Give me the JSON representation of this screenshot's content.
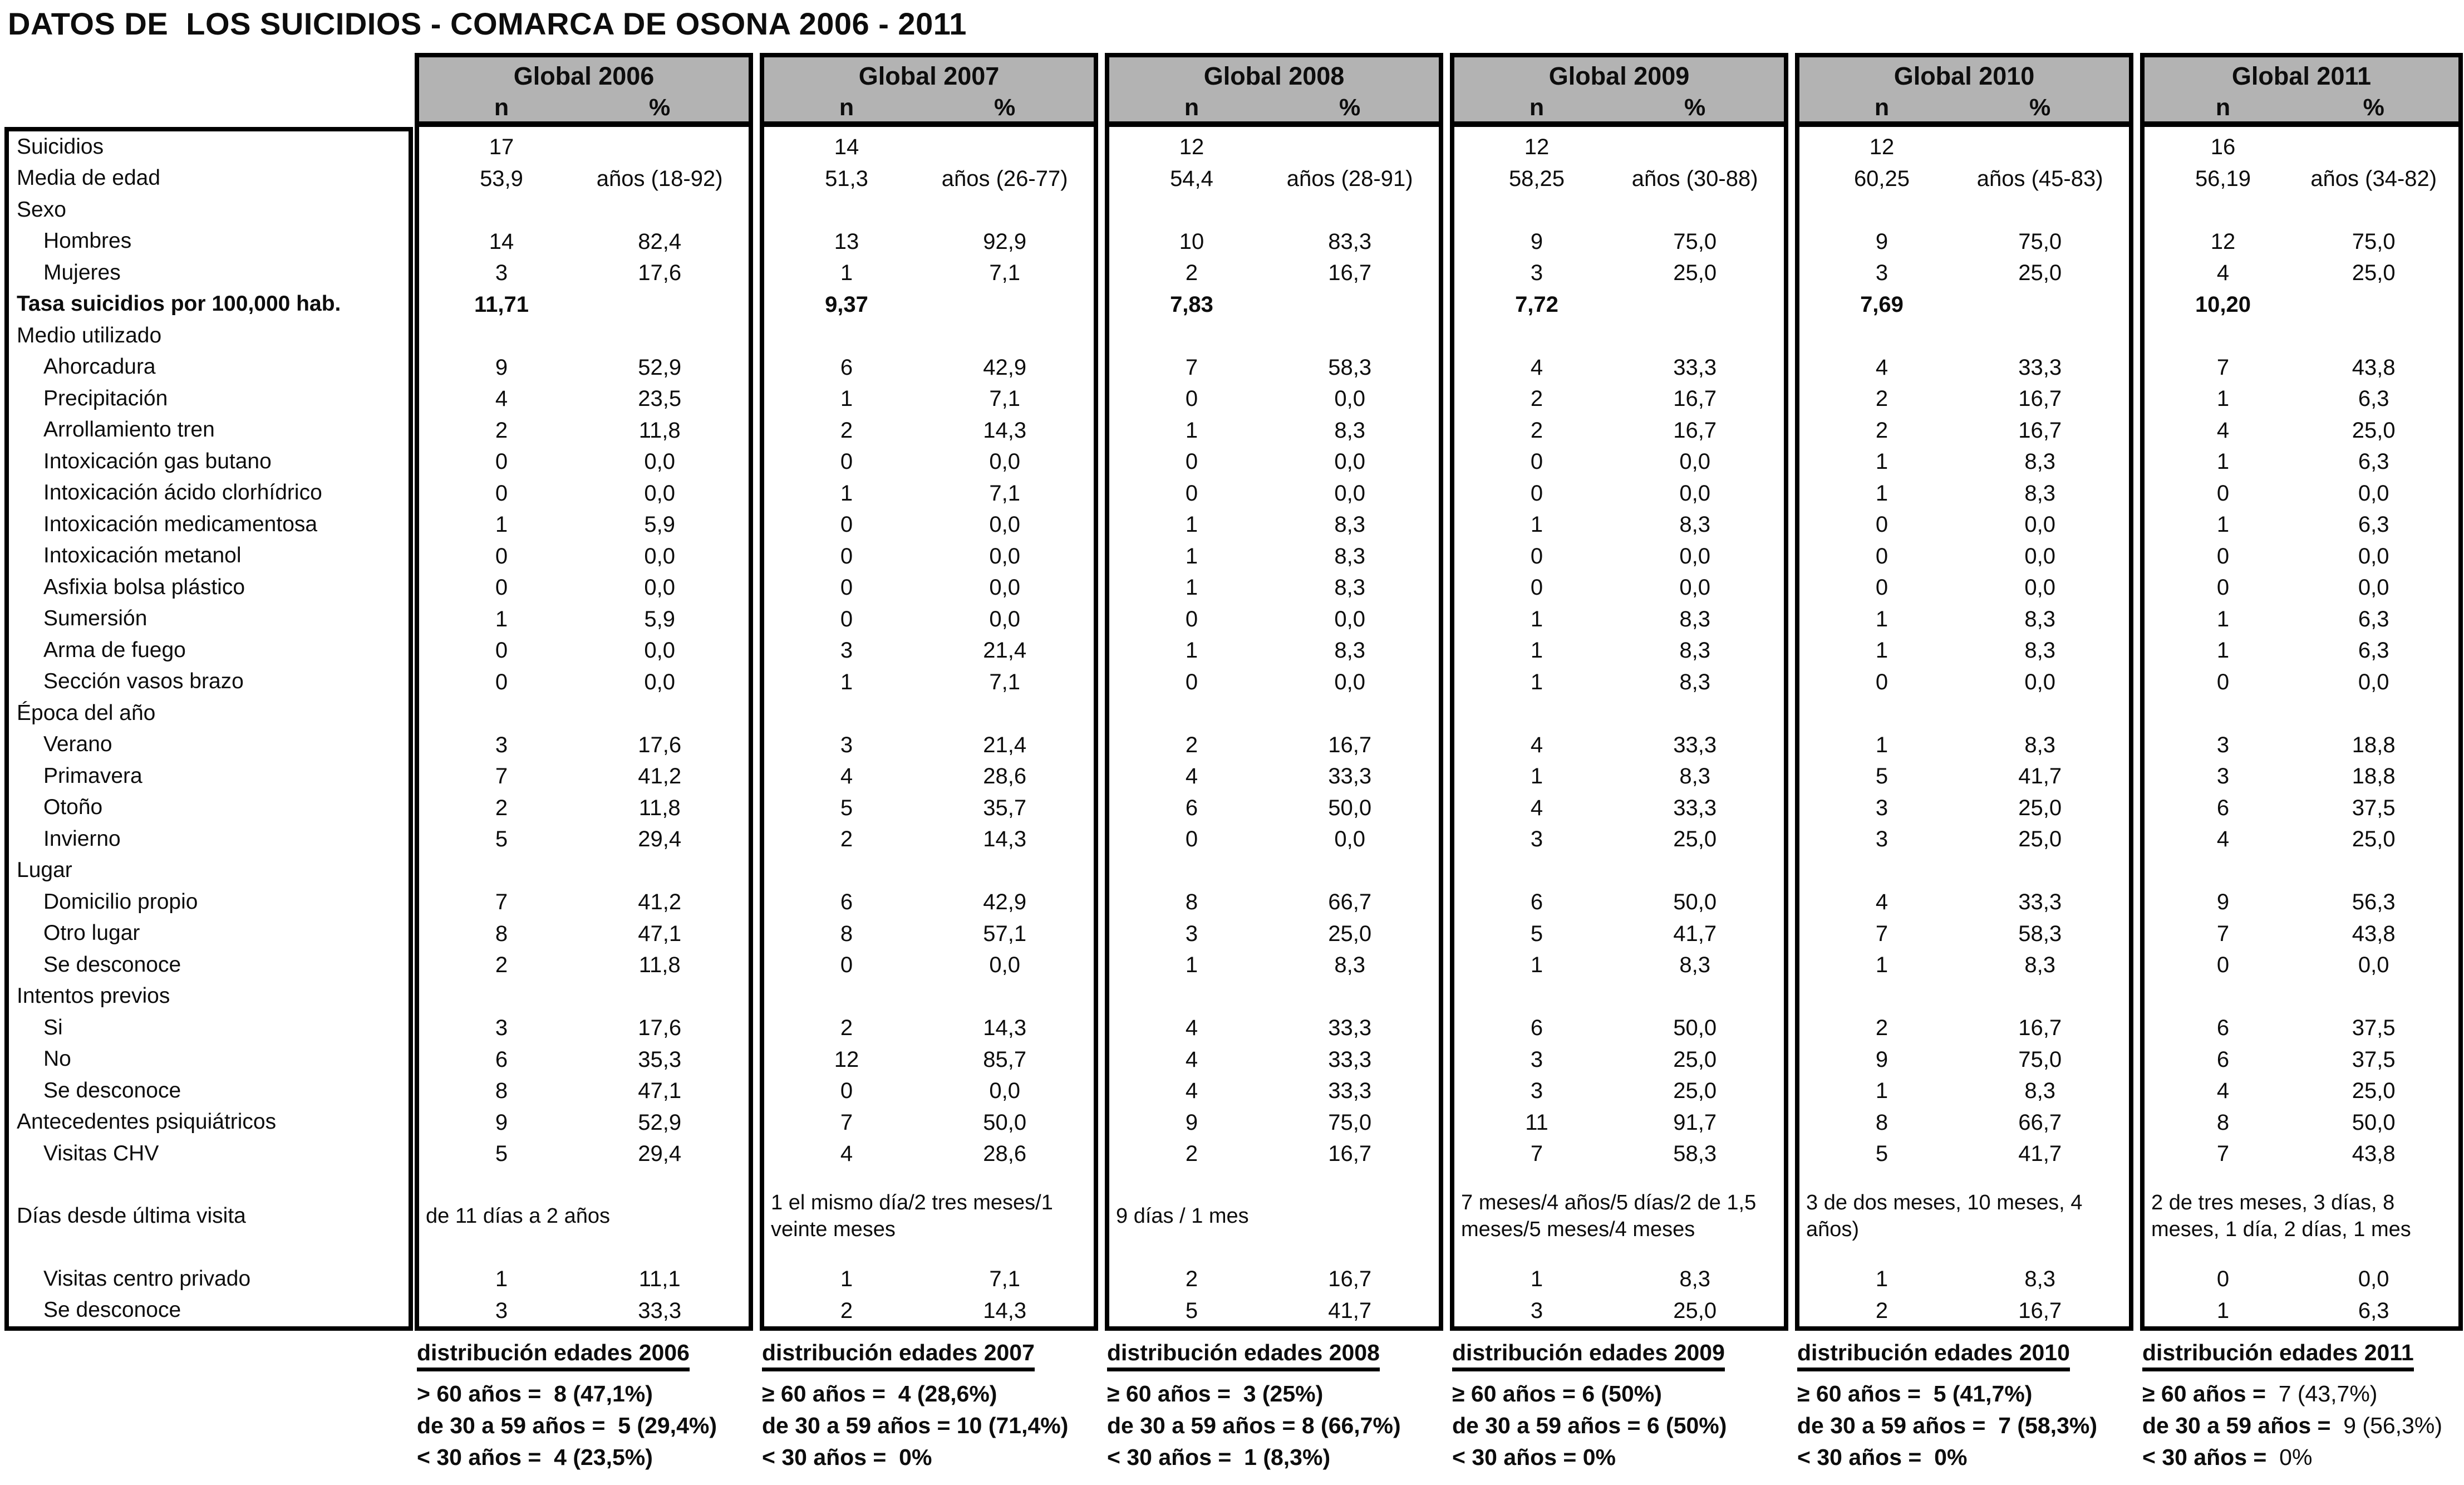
{
  "title": "DATOS DE  LOS SUICIDIOS - COMARCA DE OSONA 2006 - 2011",
  "table": {
    "years": [
      "Global 2006",
      "Global 2007",
      "Global 2008",
      "Global 2009",
      "Global 2010",
      "Global 2011"
    ],
    "col_n": "n",
    "col_pct": "%",
    "rows": [
      {
        "label": "Suicidios",
        "indent": false,
        "type": "data",
        "cells": [
          [
            "17",
            ""
          ],
          [
            "14",
            ""
          ],
          [
            "12",
            ""
          ],
          [
            "12",
            ""
          ],
          [
            "12",
            ""
          ],
          [
            "16",
            ""
          ]
        ]
      },
      {
        "label": "Media de edad",
        "indent": false,
        "type": "data",
        "cells": [
          [
            "53,9",
            "años (18-92)"
          ],
          [
            "51,3",
            "años (26-77)"
          ],
          [
            "54,4",
            "años (28-91)"
          ],
          [
            "58,25",
            "años (30-88)"
          ],
          [
            "60,25",
            "años (45-83)"
          ],
          [
            "56,19",
            "años (34-82)"
          ]
        ]
      },
      {
        "label": "Sexo",
        "indent": false,
        "type": "group"
      },
      {
        "label": "Hombres",
        "indent": true,
        "type": "data",
        "cells": [
          [
            "14",
            "82,4"
          ],
          [
            "13",
            "92,9"
          ],
          [
            "10",
            "83,3"
          ],
          [
            "9",
            "75,0"
          ],
          [
            "9",
            "75,0"
          ],
          [
            "12",
            "75,0"
          ]
        ]
      },
      {
        "label": "Mujeres",
        "indent": true,
        "type": "data",
        "cells": [
          [
            "3",
            "17,6"
          ],
          [
            "1",
            "7,1"
          ],
          [
            "2",
            "16,7"
          ],
          [
            "3",
            "25,0"
          ],
          [
            "3",
            "25,0"
          ],
          [
            "4",
            "25,0"
          ]
        ]
      },
      {
        "label": "Tasa suicidios por 100,000 hab.",
        "indent": false,
        "bold": true,
        "type": "rate",
        "cells": [
          [
            "11,71",
            ""
          ],
          [
            "9,37",
            ""
          ],
          [
            "7,83",
            ""
          ],
          [
            "7,72",
            ""
          ],
          [
            "7,69",
            ""
          ],
          [
            "10,20",
            ""
          ]
        ]
      },
      {
        "label": "Medio utilizado",
        "indent": false,
        "type": "group"
      },
      {
        "label": "Ahorcadura",
        "indent": true,
        "type": "data",
        "cells": [
          [
            "9",
            "52,9"
          ],
          [
            "6",
            "42,9"
          ],
          [
            "7",
            "58,3"
          ],
          [
            "4",
            "33,3"
          ],
          [
            "4",
            "33,3"
          ],
          [
            "7",
            "43,8"
          ]
        ]
      },
      {
        "label": "Precipitación",
        "indent": true,
        "type": "data",
        "cells": [
          [
            "4",
            "23,5"
          ],
          [
            "1",
            "7,1"
          ],
          [
            "0",
            "0,0"
          ],
          [
            "2",
            "16,7"
          ],
          [
            "2",
            "16,7"
          ],
          [
            "1",
            "6,3"
          ]
        ]
      },
      {
        "label": "Arrollamiento tren",
        "indent": true,
        "type": "data",
        "cells": [
          [
            "2",
            "11,8"
          ],
          [
            "2",
            "14,3"
          ],
          [
            "1",
            "8,3"
          ],
          [
            "2",
            "16,7"
          ],
          [
            "2",
            "16,7"
          ],
          [
            "4",
            "25,0"
          ]
        ]
      },
      {
        "label": "Intoxicación gas butano",
        "indent": true,
        "type": "data",
        "cells": [
          [
            "0",
            "0,0"
          ],
          [
            "0",
            "0,0"
          ],
          [
            "0",
            "0,0"
          ],
          [
            "0",
            "0,0"
          ],
          [
            "1",
            "8,3"
          ],
          [
            "1",
            "6,3"
          ]
        ]
      },
      {
        "label": "Intoxicación ácido clorhídrico",
        "indent": true,
        "type": "data",
        "cells": [
          [
            "0",
            "0,0"
          ],
          [
            "1",
            "7,1"
          ],
          [
            "0",
            "0,0"
          ],
          [
            "0",
            "0,0"
          ],
          [
            "1",
            "8,3"
          ],
          [
            "0",
            "0,0"
          ]
        ]
      },
      {
        "label": "Intoxicación medicamentosa",
        "indent": true,
        "type": "data",
        "cells": [
          [
            "1",
            "5,9"
          ],
          [
            "0",
            "0,0"
          ],
          [
            "1",
            "8,3"
          ],
          [
            "1",
            "8,3"
          ],
          [
            "0",
            "0,0"
          ],
          [
            "1",
            "6,3"
          ]
        ]
      },
      {
        "label": "Intoxicación metanol",
        "indent": true,
        "type": "data",
        "cells": [
          [
            "0",
            "0,0"
          ],
          [
            "0",
            "0,0"
          ],
          [
            "1",
            "8,3"
          ],
          [
            "0",
            "0,0"
          ],
          [
            "0",
            "0,0"
          ],
          [
            "0",
            "0,0"
          ]
        ]
      },
      {
        "label": "Asfixia bolsa plástico",
        "indent": true,
        "type": "data",
        "cells": [
          [
            "0",
            "0,0"
          ],
          [
            "0",
            "0,0"
          ],
          [
            "1",
            "8,3"
          ],
          [
            "0",
            "0,0"
          ],
          [
            "0",
            "0,0"
          ],
          [
            "0",
            "0,0"
          ]
        ]
      },
      {
        "label": "Sumersión",
        "indent": true,
        "type": "data",
        "cells": [
          [
            "1",
            "5,9"
          ],
          [
            "0",
            "0,0"
          ],
          [
            "0",
            "0,0"
          ],
          [
            "1",
            "8,3"
          ],
          [
            "1",
            "8,3"
          ],
          [
            "1",
            "6,3"
          ]
        ]
      },
      {
        "label": "Arma de fuego",
        "indent": true,
        "type": "data",
        "cells": [
          [
            "0",
            "0,0"
          ],
          [
            "3",
            "21,4"
          ],
          [
            "1",
            "8,3"
          ],
          [
            "1",
            "8,3"
          ],
          [
            "1",
            "8,3"
          ],
          [
            "1",
            "6,3"
          ]
        ]
      },
      {
        "label": "Sección vasos brazo",
        "indent": true,
        "type": "data",
        "cells": [
          [
            "0",
            "0,0"
          ],
          [
            "1",
            "7,1"
          ],
          [
            "0",
            "0,0"
          ],
          [
            "1",
            "8,3"
          ],
          [
            "0",
            "0,0"
          ],
          [
            "0",
            "0,0"
          ]
        ]
      },
      {
        "label": "Época del año",
        "indent": false,
        "type": "group"
      },
      {
        "label": "Verano",
        "indent": true,
        "type": "data",
        "cells": [
          [
            "3",
            "17,6"
          ],
          [
            "3",
            "21,4"
          ],
          [
            "2",
            "16,7"
          ],
          [
            "4",
            "33,3"
          ],
          [
            "1",
            "8,3"
          ],
          [
            "3",
            "18,8"
          ]
        ]
      },
      {
        "label": "Primavera",
        "indent": true,
        "type": "data",
        "cells": [
          [
            "7",
            "41,2"
          ],
          [
            "4",
            "28,6"
          ],
          [
            "4",
            "33,3"
          ],
          [
            "1",
            "8,3"
          ],
          [
            "5",
            "41,7"
          ],
          [
            "3",
            "18,8"
          ]
        ]
      },
      {
        "label": "Otoño",
        "indent": true,
        "type": "data",
        "cells": [
          [
            "2",
            "11,8"
          ],
          [
            "5",
            "35,7"
          ],
          [
            "6",
            "50,0"
          ],
          [
            "4",
            "33,3"
          ],
          [
            "3",
            "25,0"
          ],
          [
            "6",
            "37,5"
          ]
        ]
      },
      {
        "label": "Invierno",
        "indent": true,
        "type": "data",
        "cells": [
          [
            "5",
            "29,4"
          ],
          [
            "2",
            "14,3"
          ],
          [
            "0",
            "0,0"
          ],
          [
            "3",
            "25,0"
          ],
          [
            "3",
            "25,0"
          ],
          [
            "4",
            "25,0"
          ]
        ]
      },
      {
        "label": "Lugar",
        "indent": false,
        "type": "group"
      },
      {
        "label": "Domicilio propio",
        "indent": true,
        "type": "data",
        "cells": [
          [
            "7",
            "41,2"
          ],
          [
            "6",
            "42,9"
          ],
          [
            "8",
            "66,7"
          ],
          [
            "6",
            "50,0"
          ],
          [
            "4",
            "33,3"
          ],
          [
            "9",
            "56,3"
          ]
        ]
      },
      {
        "label": "Otro lugar",
        "indent": true,
        "type": "data",
        "cells": [
          [
            "8",
            "47,1"
          ],
          [
            "8",
            "57,1"
          ],
          [
            "3",
            "25,0"
          ],
          [
            "5",
            "41,7"
          ],
          [
            "7",
            "58,3"
          ],
          [
            "7",
            "43,8"
          ]
        ]
      },
      {
        "label": "Se desconoce",
        "indent": true,
        "type": "data",
        "cells": [
          [
            "2",
            "11,8"
          ],
          [
            "0",
            "0,0"
          ],
          [
            "1",
            "8,3"
          ],
          [
            "1",
            "8,3"
          ],
          [
            "1",
            "8,3"
          ],
          [
            "0",
            "0,0"
          ]
        ]
      },
      {
        "label": "Intentos previos",
        "indent": false,
        "type": "group"
      },
      {
        "label": "Si",
        "indent": true,
        "type": "data",
        "cells": [
          [
            "3",
            "17,6"
          ],
          [
            "2",
            "14,3"
          ],
          [
            "4",
            "33,3"
          ],
          [
            "6",
            "50,0"
          ],
          [
            "2",
            "16,7"
          ],
          [
            "6",
            "37,5"
          ]
        ]
      },
      {
        "label": "No",
        "indent": true,
        "type": "data",
        "cells": [
          [
            "6",
            "35,3"
          ],
          [
            "12",
            "85,7"
          ],
          [
            "4",
            "33,3"
          ],
          [
            "3",
            "25,0"
          ],
          [
            "9",
            "75,0"
          ],
          [
            "6",
            "37,5"
          ]
        ]
      },
      {
        "label": "Se desconoce",
        "indent": true,
        "type": "data",
        "cells": [
          [
            "8",
            "47,1"
          ],
          [
            "0",
            "0,0"
          ],
          [
            "4",
            "33,3"
          ],
          [
            "3",
            "25,0"
          ],
          [
            "1",
            "8,3"
          ],
          [
            "4",
            "25,0"
          ]
        ]
      },
      {
        "label": "Antecedentes psiquiátricos",
        "indent": false,
        "type": "data",
        "cells": [
          [
            "9",
            "52,9"
          ],
          [
            "7",
            "50,0"
          ],
          [
            "9",
            "75,0"
          ],
          [
            "11",
            "91,7"
          ],
          [
            "8",
            "66,7"
          ],
          [
            "8",
            "50,0"
          ]
        ]
      },
      {
        "label": "Visitas CHV",
        "indent": true,
        "type": "data",
        "cells": [
          [
            "5",
            "29,4"
          ],
          [
            "4",
            "28,6"
          ],
          [
            "2",
            "16,7"
          ],
          [
            "7",
            "58,3"
          ],
          [
            "5",
            "41,7"
          ],
          [
            "7",
            "43,8"
          ]
        ]
      },
      {
        "label": "Días desde última visita",
        "indent": false,
        "type": "days",
        "cells": [
          "de 11 días a 2 años",
          "1 el mismo día/2 tres meses/1 veinte meses",
          "9 días / 1 mes",
          "7 meses/4 años/5 días/2 de 1,5 meses/5 meses/4 meses",
          "3 de dos meses, 10 meses, 4 años)",
          "2 de tres meses, 3 días, 8 meses, 1 día, 2 días, 1 mes"
        ]
      },
      {
        "label": "Visitas centro privado",
        "indent": true,
        "type": "data",
        "cells": [
          [
            "1",
            "11,1"
          ],
          [
            "1",
            "7,1"
          ],
          [
            "2",
            "16,7"
          ],
          [
            "1",
            "8,3"
          ],
          [
            "1",
            "8,3"
          ],
          [
            "0",
            "0,0"
          ]
        ]
      },
      {
        "label": "Se desconoce",
        "indent": true,
        "type": "data",
        "cells": [
          [
            "3",
            "33,3"
          ],
          [
            "2",
            "14,3"
          ],
          [
            "5",
            "41,7"
          ],
          [
            "3",
            "25,0"
          ],
          [
            "2",
            "16,7"
          ],
          [
            "1",
            "6,3"
          ]
        ]
      }
    ]
  },
  "footers": [
    {
      "title": "distribución edades 2006",
      "light_values": false,
      "lines": [
        {
          "label": "> 60 años =",
          "value": " 8 (47,1%)"
        },
        {
          "label": "de 30 a 59 años =",
          "value": " 5 (29,4%)"
        },
        {
          "label": "< 30 años =",
          "value": " 4 (23,5%)"
        }
      ]
    },
    {
      "title": "distribución edades 2007",
      "light_values": false,
      "lines": [
        {
          "label": "≥ 60 años =",
          "value": " 4 (28,6%)"
        },
        {
          "label": "de 30 a 59 años =",
          "value": "10 (71,4%)"
        },
        {
          "label": "< 30 años =",
          "value": " 0%"
        }
      ]
    },
    {
      "title": "distribución edades 2008",
      "light_values": false,
      "lines": [
        {
          "label": "≥ 60 años =",
          "value": " 3 (25%)"
        },
        {
          "label": "de 30 a 59 años =",
          "value": "8 (66,7%)"
        },
        {
          "label": "< 30 años =",
          "value": " 1 (8,3%)"
        }
      ]
    },
    {
      "title": "distribución edades 2009",
      "light_values": false,
      "lines": [
        {
          "label": "≥ 60 años =",
          "value": "6 (50%)"
        },
        {
          "label": "de 30 a 59 años =",
          "value": "6 (50%)"
        },
        {
          "label": "< 30 años =",
          "value": "0%"
        }
      ]
    },
    {
      "title": "distribución edades 2010",
      "light_values": false,
      "lines": [
        {
          "label": "≥ 60 años =",
          "value": " 5 (41,7%)"
        },
        {
          "label": "de 30 a 59 años =",
          "value": " 7 (58,3%)"
        },
        {
          "label": "< 30 años =",
          "value": " 0%"
        }
      ]
    },
    {
      "title": "distribución edades 2011",
      "light_values": true,
      "lines": [
        {
          "label": "≥ 60 años =",
          "value": " 7 (43,7%)"
        },
        {
          "label": "de 30 a 59 años =",
          "value": " 9 (56,3%)"
        },
        {
          "label": "< 30 años =",
          "value": " 0%"
        }
      ]
    }
  ]
}
